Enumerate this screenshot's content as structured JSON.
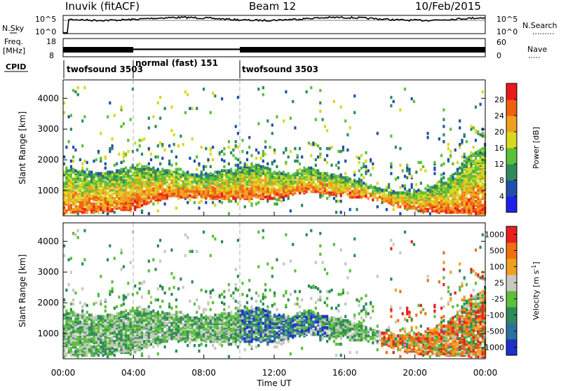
{
  "header": {
    "station": "Inuvik (fitACF)",
    "beam": "Beam 12",
    "date": "10/Feb/2015"
  },
  "top_panels": {
    "nsky_label": "N.Sky",
    "nsky_ticks": [
      "10^5",
      "10^0"
    ],
    "nsearch_label": "N.Search",
    "nsearch_ticks": [
      "10^5",
      "10^0"
    ],
    "freq_label_1": "Freq.",
    "freq_label_2": "[MHz]",
    "freq_ticks": [
      "18",
      "8"
    ],
    "nave_label": "Nave",
    "nave_ticks": [
      "60",
      "0"
    ],
    "cpid_label": "CPID",
    "cpid_segments": [
      {
        "name": "twofsound 3503",
        "start_hour": 0,
        "end_hour": 4
      },
      {
        "name": "normal (fast) 151",
        "start_hour": 4,
        "end_hour": 10
      },
      {
        "name": "twofsound 3503",
        "start_hour": 10,
        "end_hour": 24
      }
    ]
  },
  "colorbars": {
    "power": {
      "label": "Power [dB]",
      "ticks": [
        "28",
        "24",
        "20",
        "16",
        "12",
        "8",
        "4"
      ],
      "colors": [
        "#1e22e8",
        "#2050a8",
        "#2e8a5a",
        "#5cbf3a",
        "#d8d820",
        "#f0a020",
        "#f06010",
        "#e81a1a"
      ]
    },
    "velocity": {
      "label": "Velocity [m s",
      "label_sup": "-1",
      "label_end": "]",
      "ticks": [
        "1000",
        "500",
        "100",
        "25",
        "-25",
        "-100",
        "-500",
        "-1000"
      ],
      "colors": [
        "#1e30c8",
        "#2a70a0",
        "#2e8a5a",
        "#5cbf3a",
        "#c8c8c0",
        "#f0a020",
        "#f07010",
        "#e82020"
      ]
    }
  },
  "chart_data": [
    {
      "type": "heatmap",
      "name": "power",
      "xlabel": "",
      "ylabel": "Slant Range [km]",
      "x_range_hours": [
        0,
        24
      ],
      "ylim": [
        180,
        4600
      ],
      "yticks": [
        "1000",
        "2000",
        "3000",
        "4000"
      ],
      "band": {
        "hours": [
          0,
          1,
          2,
          3,
          4,
          5,
          6,
          7,
          8,
          9,
          10,
          11,
          12,
          13,
          14,
          15,
          16,
          17,
          18,
          19,
          20,
          21,
          22,
          23,
          24
        ],
        "lower_km": [
          300,
          320,
          360,
          400,
          420,
          700,
          800,
          820,
          780,
          760,
          750,
          760,
          800,
          900,
          1000,
          950,
          850,
          800,
          700,
          500,
          400,
          350,
          320,
          300,
          300
        ],
        "upper_km": [
          1800,
          1700,
          1600,
          1700,
          1900,
          1800,
          1700,
          1600,
          1600,
          1700,
          1800,
          1900,
          1700,
          1600,
          1800,
          1600,
          1500,
          1300,
          1100,
          1000,
          1050,
          1200,
          1500,
          2200,
          2500
        ]
      }
    },
    {
      "type": "heatmap",
      "name": "velocity",
      "xlabel": "Time UT",
      "ylabel": "Slant Range [km]",
      "x_range_hours": [
        0,
        24
      ],
      "ylim": [
        180,
        4600
      ],
      "yticks": [
        "1000",
        "2000",
        "3000",
        "4000"
      ],
      "xticks": [
        "00:00",
        "04:00",
        "08:00",
        "12:00",
        "16:00",
        "20:00",
        "00:00"
      ]
    }
  ]
}
